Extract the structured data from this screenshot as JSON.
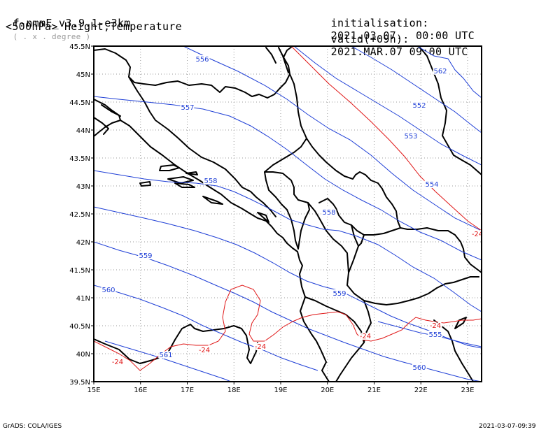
{
  "header": {
    "model": "f-nmmE_v3.9.1-e3km",
    "model_units": "( . x . degree )",
    "init_label": "initialisation:",
    "init_value": "2021.03.07.  00:00 UTC",
    "level": "<500hPa> Height,Temperature",
    "valid_label": "valid(+09h):",
    "valid_value": "2021.MAR.07 09:00 UTC"
  },
  "footer": {
    "left": "GrADS: COLA/IGES",
    "right": "2021-03-07-09:39"
  },
  "map": {
    "lon_range": [
      15,
      23.3
    ],
    "lat_range": [
      39.5,
      45.5
    ],
    "grid": "dotted",
    "lat_ticks": [
      "39.5N",
      "40N",
      "40.5N",
      "41N",
      "41.5N",
      "42N",
      "42.5N",
      "43N",
      "43.5N",
      "44N",
      "44.5N",
      "45N",
      "45.5N"
    ],
    "lon_ticks": [
      "15E",
      "16E",
      "17E",
      "18E",
      "19E",
      "20E",
      "21E",
      "22E",
      "23E"
    ],
    "colors": {
      "height": "#1f3fd6",
      "temperature": "#e01818",
      "coast": "#000000",
      "grid": "#9a9a9a"
    }
  },
  "contours": {
    "height_labels": [
      "556",
      "557",
      "558",
      "558",
      "559",
      "559",
      "560",
      "560",
      "561",
      "562",
      "552",
      "553",
      "554",
      "555"
    ],
    "temperature_labels": [
      "-24",
      "-24",
      "-24",
      "-24",
      "-24",
      "-24"
    ]
  }
}
